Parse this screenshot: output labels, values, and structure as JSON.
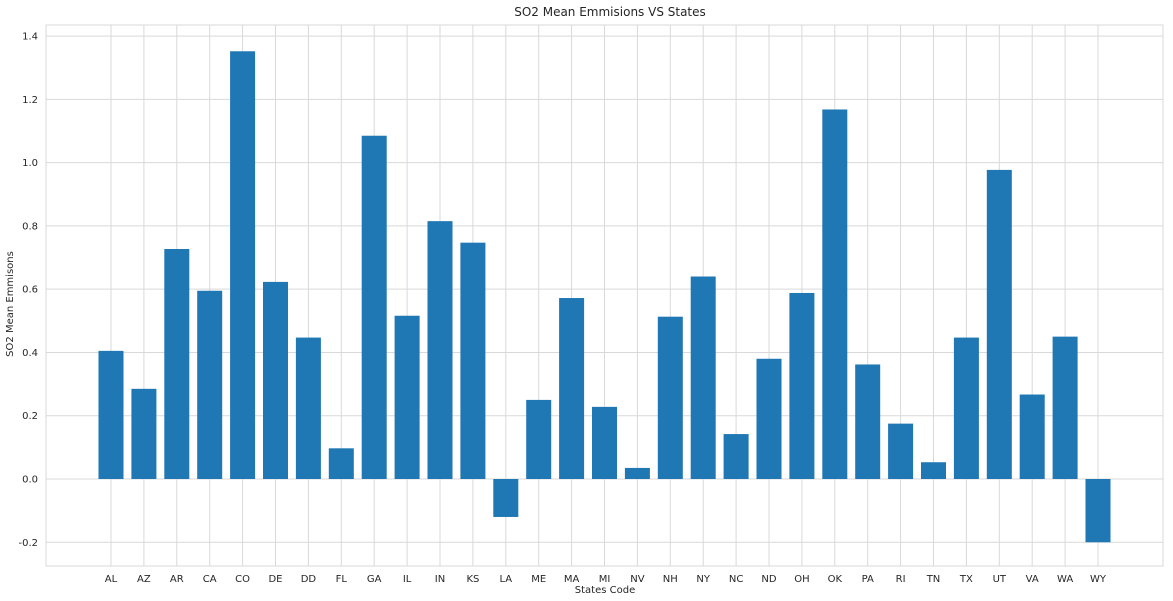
{
  "chart_data": {
    "type": "bar",
    "title": "SO2 Mean Emmisions VS States",
    "xlabel": "States Code",
    "ylabel": "SO2 Mean Emmisons",
    "ylim": [
      -0.275,
      1.435
    ],
    "yticks": [
      -0.2,
      0.0,
      0.2,
      0.4,
      0.6,
      0.8,
      1.0,
      1.2,
      1.4
    ],
    "ytick_labels": [
      "-0.2",
      "0.0",
      "0.2",
      "0.4",
      "0.6",
      "0.8",
      "1.0",
      "1.2",
      "1.4"
    ],
    "grid": true,
    "bar_color": "#1f77b4",
    "grid_color": "#d9d9d9",
    "categories": [
      "AL",
      "AZ",
      "AR",
      "CA",
      "CO",
      "DE",
      "DD",
      "FL",
      "GA",
      "IL",
      "IN",
      "KS",
      "LA",
      "ME",
      "MA",
      "MI",
      "NV",
      "NH",
      "NY",
      "NC",
      "ND",
      "OH",
      "OK",
      "PA",
      "RI",
      "TN",
      "TX",
      "UT",
      "VA",
      "WA",
      "WY"
    ],
    "values": [
      0.405,
      0.285,
      0.727,
      0.595,
      1.352,
      0.623,
      0.447,
      0.097,
      1.085,
      0.516,
      0.815,
      0.747,
      -0.12,
      0.25,
      0.572,
      0.228,
      0.035,
      0.513,
      0.64,
      0.142,
      0.38,
      0.588,
      1.168,
      0.362,
      0.175,
      0.053,
      0.447,
      0.977,
      0.267,
      0.45,
      -0.2
    ]
  }
}
